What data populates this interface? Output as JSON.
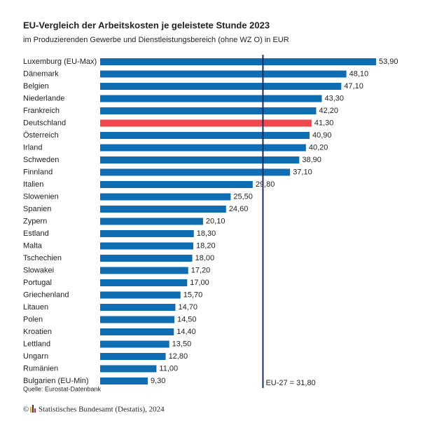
{
  "chart_data": {
    "type": "hbar",
    "title": "EU-Vergleich der Arbeitskosten je geleistete Stunde 2023",
    "subtitle": "im Produzierenden Gewerbe und Dienstleistungsbereich (ohne WZ O) in EUR",
    "categories": [
      "Luxemburg (EU-Max)",
      "Dänemark",
      "Belgien",
      "Niederlande",
      "Frankreich",
      "Deutschland",
      "Österreich",
      "Irland",
      "Schweden",
      "Finnland",
      "Italien",
      "Slowenien",
      "Spanien",
      "Zypern",
      "Estland",
      "Malta",
      "Tschechien",
      "Slowakei",
      "Portugal",
      "Griechenland",
      "Litauen",
      "Polen",
      "Kroatien",
      "Lettland",
      "Ungarn",
      "Rumänien",
      "Bulgarien (EU-Min)"
    ],
    "values": [
      53.9,
      48.1,
      47.1,
      43.3,
      42.2,
      41.3,
      40.9,
      40.2,
      38.9,
      37.1,
      29.8,
      25.5,
      24.6,
      20.1,
      18.3,
      18.2,
      18.0,
      17.2,
      17.0,
      15.7,
      14.7,
      14.5,
      14.4,
      13.5,
      12.8,
      11.0,
      9.3
    ],
    "value_labels": [
      "53,90",
      "48,10",
      "47,10",
      "43,30",
      "42,20",
      "41,30",
      "40,90",
      "40,20",
      "38,90",
      "37,10",
      "29,80",
      "25,50",
      "24,60",
      "20,10",
      "18,30",
      "18,20",
      "18,00",
      "17,20",
      "17,00",
      "15,70",
      "14,70",
      "14,50",
      "14,40",
      "13,50",
      "12,80",
      "11,00",
      "9,30"
    ],
    "colors": [
      "#0f6db3",
      "#0f6db3",
      "#0f6db3",
      "#0f6db3",
      "#0f6db3",
      "#f0474e",
      "#0f6db3",
      "#0f6db3",
      "#0f6db3",
      "#0f6db3",
      "#0f6db3",
      "#0f6db3",
      "#0f6db3",
      "#0f6db3",
      "#0f6db3",
      "#0f6db3",
      "#0f6db3",
      "#0f6db3",
      "#0f6db3",
      "#0f6db3",
      "#0f6db3",
      "#0f6db3",
      "#0f6db3",
      "#0f6db3",
      "#0f6db3",
      "#0f6db3",
      "#0f6db3"
    ],
    "reference_line": {
      "value": 31.8,
      "label": "EU-27 = 31,80",
      "color": "#1b2d5c"
    },
    "source": "Quelle: Eurostat-Datenbank",
    "copyright_symbol": "©",
    "footer": "Statistisches Bundesamt (Destatis), 2024"
  }
}
